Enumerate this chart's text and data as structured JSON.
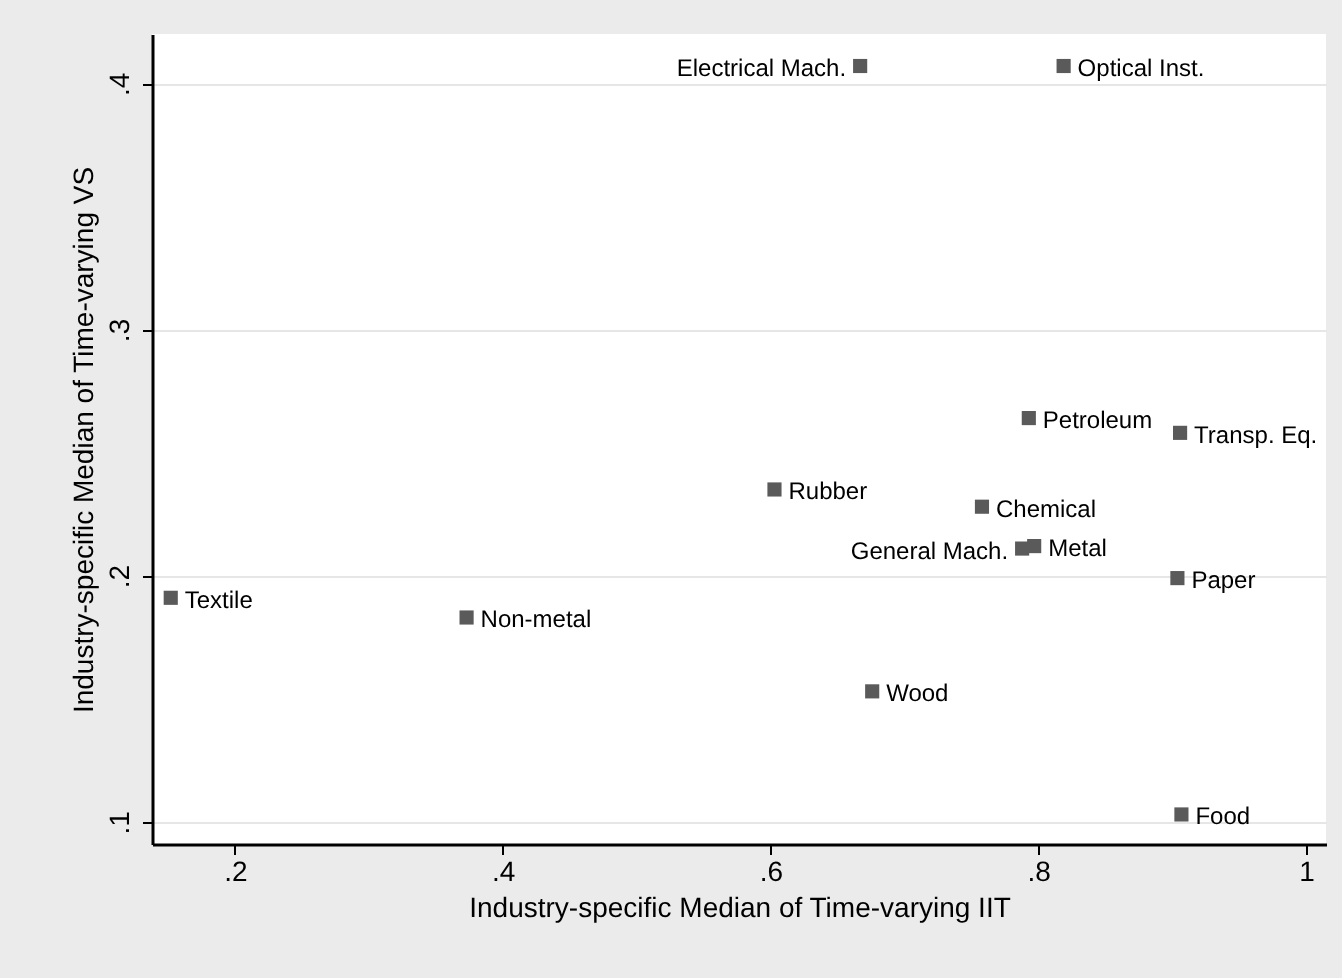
{
  "chart_data": {
    "type": "scatter",
    "xlabel": "Industry-specific Median of Time-varying IIT",
    "ylabel": "Industry-specific Median of Time-varying VS",
    "x": [
      0.667,
      0.819,
      0.793,
      0.906,
      0.603,
      0.758,
      0.788,
      0.797,
      0.904,
      0.152,
      0.373,
      0.676,
      0.907
    ],
    "series": [
      {
        "color": "#5a5a5a",
        "values": [
          0.407,
          0.407,
          0.264,
          0.258,
          0.235,
          0.228,
          0.211,
          0.212,
          0.199,
          0.191,
          0.183,
          0.153,
          0.103
        ]
      }
    ],
    "marker": "square",
    "annotations": [
      {
        "text": "Electrical Mach.",
        "x": 0.667,
        "y": 0.407
      },
      {
        "text": "Optical Inst.",
        "x": 0.819,
        "y": 0.407
      },
      {
        "text": "Petroleum",
        "x": 0.793,
        "y": 0.264
      },
      {
        "text": "Transp. Eq.",
        "x": 0.906,
        "y": 0.258
      },
      {
        "text": "Rubber",
        "x": 0.603,
        "y": 0.235
      },
      {
        "text": "Chemical",
        "x": 0.758,
        "y": 0.228
      },
      {
        "text": "General Mach.",
        "x": 0.788,
        "y": 0.211
      },
      {
        "text": "Metal",
        "x": 0.797,
        "y": 0.212
      },
      {
        "text": "Paper",
        "x": 0.904,
        "y": 0.199
      },
      {
        "text": "Textile",
        "x": 0.152,
        "y": 0.191
      },
      {
        "text": "Non-metal",
        "x": 0.373,
        "y": 0.183
      },
      {
        "text": "Wood",
        "x": 0.676,
        "y": 0.153
      },
      {
        "text": "Food",
        "x": 0.907,
        "y": 0.103
      }
    ],
    "xlim": [
      0.138,
      1.015
    ],
    "ylim": [
      0.091,
      0.42
    ],
    "xticks": [
      {
        "value": 0.2,
        "label": ".2"
      },
      {
        "value": 0.4,
        "label": ".4"
      },
      {
        "value": 0.6,
        "label": ".6"
      },
      {
        "value": 0.8,
        "label": ".8"
      },
      1
    ],
    "yticks": [
      {
        "value": 0.1,
        "label": ".1"
      },
      {
        "value": 0.2,
        "label": ".2"
      },
      {
        "value": 0.3,
        "label": ".3"
      },
      {
        "value": 0.4,
        "label": ".4"
      }
    ],
    "grid": "y"
  }
}
